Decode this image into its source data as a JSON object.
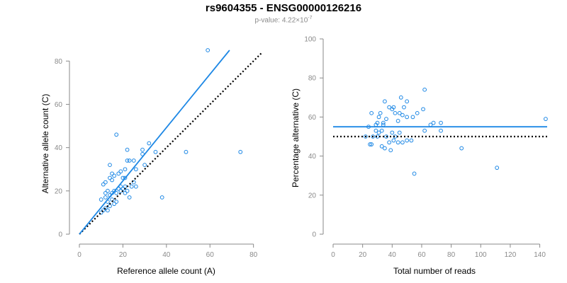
{
  "title": "rs9604355 - ENSG00000126216",
  "subtitle": {
    "prefix": "p-value: 4.22×10",
    "exponent": "-7"
  },
  "colors": {
    "series": "#1e88e5",
    "axis": "#8a8a8a",
    "reference": "#000000"
  },
  "chart_data": [
    {
      "type": "scatter",
      "xlabel": "Reference allele count (A)",
      "ylabel": "Alternative allele count (C)",
      "xlim": [
        0,
        85
      ],
      "ylim": [
        0,
        85
      ],
      "xticks": [
        0,
        20,
        40,
        60,
        80
      ],
      "yticks": [
        0,
        20,
        40,
        60,
        80
      ],
      "grid": false,
      "points": [
        [
          59,
          85
        ],
        [
          17,
          46
        ],
        [
          74,
          38
        ],
        [
          49,
          38
        ],
        [
          38,
          17
        ],
        [
          32,
          42
        ],
        [
          29,
          39
        ],
        [
          29,
          37
        ],
        [
          22,
          39
        ],
        [
          35,
          38
        ],
        [
          23,
          34
        ],
        [
          22,
          34
        ],
        [
          25,
          34
        ],
        [
          26,
          30
        ],
        [
          21,
          30
        ],
        [
          19,
          29
        ],
        [
          18,
          28
        ],
        [
          14,
          32
        ],
        [
          15,
          28
        ],
        [
          14,
          26
        ],
        [
          12,
          24
        ],
        [
          11,
          23
        ],
        [
          15,
          25
        ],
        [
          16,
          27
        ],
        [
          20,
          26
        ],
        [
          21,
          26
        ],
        [
          19,
          22
        ],
        [
          21,
          22
        ],
        [
          18,
          21
        ],
        [
          20,
          21
        ],
        [
          24,
          22
        ],
        [
          25,
          24
        ],
        [
          26,
          22
        ],
        [
          22,
          20
        ],
        [
          23,
          17
        ],
        [
          19,
          20
        ],
        [
          16,
          20
        ],
        [
          17,
          19
        ],
        [
          15,
          19
        ],
        [
          13,
          20
        ],
        [
          12,
          19
        ],
        [
          14,
          18
        ],
        [
          12,
          17
        ],
        [
          15,
          16
        ],
        [
          13,
          15
        ],
        [
          10,
          16
        ],
        [
          17,
          15
        ],
        [
          16,
          14
        ],
        [
          14,
          13
        ],
        [
          12,
          12
        ],
        [
          13,
          11
        ],
        [
          11,
          11
        ],
        [
          10,
          10
        ],
        [
          21,
          19
        ],
        [
          30,
          32
        ]
      ],
      "fit_line": [
        [
          0,
          0
        ],
        [
          69,
          85
        ]
      ],
      "reference_line": [
        [
          0,
          0
        ],
        [
          84,
          84
        ]
      ]
    },
    {
      "type": "scatter",
      "xlabel": "Total number of reads",
      "ylabel": "Percentage alternative (C)",
      "xlim": [
        0,
        145
      ],
      "ylim": [
        0,
        100
      ],
      "xticks": [
        0,
        20,
        40,
        60,
        80,
        100,
        120,
        140
      ],
      "yticks": [
        0,
        20,
        40,
        60,
        80,
        100
      ],
      "grid": false,
      "points": [
        [
          144,
          59
        ],
        [
          111,
          34
        ],
        [
          87,
          44
        ],
        [
          62,
          74
        ],
        [
          55,
          31
        ],
        [
          54,
          60
        ],
        [
          57,
          62
        ],
        [
          61,
          64
        ],
        [
          62,
          53
        ],
        [
          66,
          56
        ],
        [
          68,
          57
        ],
        [
          73,
          57
        ],
        [
          73,
          53
        ],
        [
          46,
          70
        ],
        [
          50,
          68
        ],
        [
          48,
          65
        ],
        [
          40,
          64
        ],
        [
          42,
          62
        ],
        [
          38,
          65
        ],
        [
          41,
          65
        ],
        [
          35,
          68
        ],
        [
          45,
          62
        ],
        [
          47,
          61
        ],
        [
          50,
          60
        ],
        [
          44,
          58
        ],
        [
          36,
          59
        ],
        [
          34,
          57
        ],
        [
          31,
          60
        ],
        [
          32,
          62
        ],
        [
          26,
          62
        ],
        [
          30,
          57
        ],
        [
          29,
          56
        ],
        [
          34,
          56
        ],
        [
          33,
          53
        ],
        [
          31,
          52
        ],
        [
          30,
          50
        ],
        [
          36,
          50
        ],
        [
          40,
          52
        ],
        [
          42,
          50
        ],
        [
          41,
          48
        ],
        [
          38,
          47
        ],
        [
          44,
          47
        ],
        [
          47,
          47
        ],
        [
          50,
          48
        ],
        [
          53,
          48
        ],
        [
          27,
          50
        ],
        [
          22,
          50
        ],
        [
          24,
          55
        ],
        [
          25,
          46
        ],
        [
          26,
          46
        ],
        [
          33,
          45
        ],
        [
          35,
          44
        ],
        [
          39,
          43
        ],
        [
          29,
          53
        ],
        [
          45,
          52
        ]
      ],
      "fit_line": [
        [
          0,
          55
        ],
        [
          145,
          55
        ]
      ],
      "reference_line": [
        [
          0,
          50
        ],
        [
          145,
          50
        ]
      ]
    }
  ]
}
